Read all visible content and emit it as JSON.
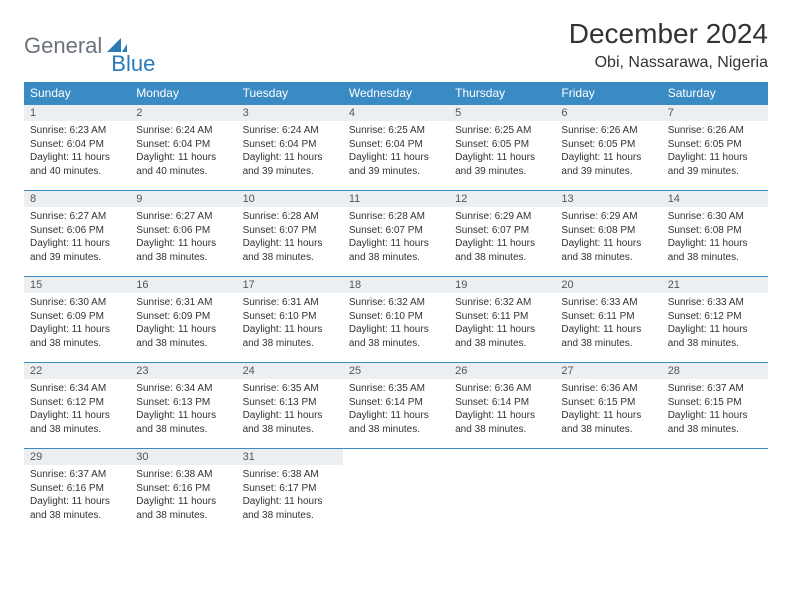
{
  "logo": {
    "part1": "General",
    "part2": "Blue"
  },
  "title": "December 2024",
  "location": "Obi, Nassarawa, Nigeria",
  "colors": {
    "header_bg": "#3a8ac4",
    "header_fg": "#ffffff",
    "daynum_bg": "#eceff1",
    "border": "#3a8ac4",
    "logo_blue": "#2a7ab8",
    "logo_gray": "#6b7280",
    "text": "#333333"
  },
  "sunrise_label": "Sunrise:",
  "sunset_label": "Sunset:",
  "daylight_prefix": "Daylight:",
  "weekdays": [
    "Sunday",
    "Monday",
    "Tuesday",
    "Wednesday",
    "Thursday",
    "Friday",
    "Saturday"
  ],
  "grid": [
    [
      {
        "day": 1,
        "sunrise": "6:23 AM",
        "sunset": "6:04 PM",
        "daylight": "11 hours and 40 minutes."
      },
      {
        "day": 2,
        "sunrise": "6:24 AM",
        "sunset": "6:04 PM",
        "daylight": "11 hours and 40 minutes."
      },
      {
        "day": 3,
        "sunrise": "6:24 AM",
        "sunset": "6:04 PM",
        "daylight": "11 hours and 39 minutes."
      },
      {
        "day": 4,
        "sunrise": "6:25 AM",
        "sunset": "6:04 PM",
        "daylight": "11 hours and 39 minutes."
      },
      {
        "day": 5,
        "sunrise": "6:25 AM",
        "sunset": "6:05 PM",
        "daylight": "11 hours and 39 minutes."
      },
      {
        "day": 6,
        "sunrise": "6:26 AM",
        "sunset": "6:05 PM",
        "daylight": "11 hours and 39 minutes."
      },
      {
        "day": 7,
        "sunrise": "6:26 AM",
        "sunset": "6:05 PM",
        "daylight": "11 hours and 39 minutes."
      }
    ],
    [
      {
        "day": 8,
        "sunrise": "6:27 AM",
        "sunset": "6:06 PM",
        "daylight": "11 hours and 39 minutes."
      },
      {
        "day": 9,
        "sunrise": "6:27 AM",
        "sunset": "6:06 PM",
        "daylight": "11 hours and 38 minutes."
      },
      {
        "day": 10,
        "sunrise": "6:28 AM",
        "sunset": "6:07 PM",
        "daylight": "11 hours and 38 minutes."
      },
      {
        "day": 11,
        "sunrise": "6:28 AM",
        "sunset": "6:07 PM",
        "daylight": "11 hours and 38 minutes."
      },
      {
        "day": 12,
        "sunrise": "6:29 AM",
        "sunset": "6:07 PM",
        "daylight": "11 hours and 38 minutes."
      },
      {
        "day": 13,
        "sunrise": "6:29 AM",
        "sunset": "6:08 PM",
        "daylight": "11 hours and 38 minutes."
      },
      {
        "day": 14,
        "sunrise": "6:30 AM",
        "sunset": "6:08 PM",
        "daylight": "11 hours and 38 minutes."
      }
    ],
    [
      {
        "day": 15,
        "sunrise": "6:30 AM",
        "sunset": "6:09 PM",
        "daylight": "11 hours and 38 minutes."
      },
      {
        "day": 16,
        "sunrise": "6:31 AM",
        "sunset": "6:09 PM",
        "daylight": "11 hours and 38 minutes."
      },
      {
        "day": 17,
        "sunrise": "6:31 AM",
        "sunset": "6:10 PM",
        "daylight": "11 hours and 38 minutes."
      },
      {
        "day": 18,
        "sunrise": "6:32 AM",
        "sunset": "6:10 PM",
        "daylight": "11 hours and 38 minutes."
      },
      {
        "day": 19,
        "sunrise": "6:32 AM",
        "sunset": "6:11 PM",
        "daylight": "11 hours and 38 minutes."
      },
      {
        "day": 20,
        "sunrise": "6:33 AM",
        "sunset": "6:11 PM",
        "daylight": "11 hours and 38 minutes."
      },
      {
        "day": 21,
        "sunrise": "6:33 AM",
        "sunset": "6:12 PM",
        "daylight": "11 hours and 38 minutes."
      }
    ],
    [
      {
        "day": 22,
        "sunrise": "6:34 AM",
        "sunset": "6:12 PM",
        "daylight": "11 hours and 38 minutes."
      },
      {
        "day": 23,
        "sunrise": "6:34 AM",
        "sunset": "6:13 PM",
        "daylight": "11 hours and 38 minutes."
      },
      {
        "day": 24,
        "sunrise": "6:35 AM",
        "sunset": "6:13 PM",
        "daylight": "11 hours and 38 minutes."
      },
      {
        "day": 25,
        "sunrise": "6:35 AM",
        "sunset": "6:14 PM",
        "daylight": "11 hours and 38 minutes."
      },
      {
        "day": 26,
        "sunrise": "6:36 AM",
        "sunset": "6:14 PM",
        "daylight": "11 hours and 38 minutes."
      },
      {
        "day": 27,
        "sunrise": "6:36 AM",
        "sunset": "6:15 PM",
        "daylight": "11 hours and 38 minutes."
      },
      {
        "day": 28,
        "sunrise": "6:37 AM",
        "sunset": "6:15 PM",
        "daylight": "11 hours and 38 minutes."
      }
    ],
    [
      {
        "day": 29,
        "sunrise": "6:37 AM",
        "sunset": "6:16 PM",
        "daylight": "11 hours and 38 minutes."
      },
      {
        "day": 30,
        "sunrise": "6:38 AM",
        "sunset": "6:16 PM",
        "daylight": "11 hours and 38 minutes."
      },
      {
        "day": 31,
        "sunrise": "6:38 AM",
        "sunset": "6:17 PM",
        "daylight": "11 hours and 38 minutes."
      },
      null,
      null,
      null,
      null
    ]
  ]
}
